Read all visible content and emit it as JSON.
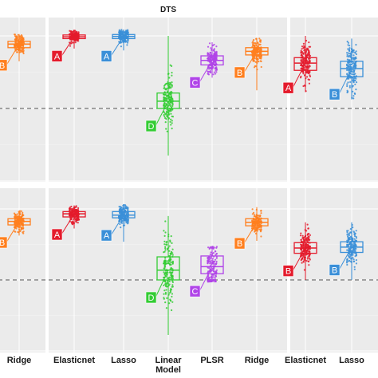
{
  "chart_data": {
    "type": "box",
    "title": "DTS",
    "colors": {
      "Ridge": "#ff7f1e",
      "Elasticnet": "#e41a2b",
      "Lasso": "#3a8fd8",
      "Linear Model": "#33cc33",
      "PLSR": "#b044e8",
      "panel_bg": "#ebebeb",
      "grid": "#ffffff",
      "reference_line": "#555555"
    },
    "rows": [
      {
        "groups": [
          {
            "columns": [
              {
                "x_label": "Ridge",
                "model": "Ridge",
                "letter": "B",
                "box": {
                  "min": 0.52,
                  "q1": 0.67,
                  "median": 0.71,
                  "q3": 0.74,
                  "max": 0.82
                }
              }
            ]
          },
          {
            "columns": [
              {
                "x_label": "Elasticnet",
                "model": "Elasticnet",
                "letter": "A",
                "box": {
                  "min": 0.66,
                  "q1": 0.77,
                  "median": 0.79,
                  "q3": 0.81,
                  "max": 0.86
                }
              },
              {
                "x_label": "Lasso",
                "model": "Lasso",
                "letter": "A",
                "box": {
                  "min": 0.64,
                  "q1": 0.77,
                  "median": 0.795,
                  "q3": 0.815,
                  "max": 0.87
                }
              },
              {
                "x_label": "Linear\nModel",
                "model": "Linear Model",
                "letter": "D",
                "box": {
                  "min": -0.52,
                  "q1": 0.0,
                  "median": 0.08,
                  "q3": 0.17,
                  "max": 0.8
                }
              },
              {
                "x_label": "PLSR",
                "model": "PLSR",
                "letter": "C",
                "box": {
                  "min": 0.34,
                  "q1": 0.48,
                  "median": 0.53,
                  "q3": 0.58,
                  "max": 0.73
                }
              },
              {
                "x_label": "Ridge",
                "model": "Ridge",
                "letter": "B",
                "box": {
                  "min": 0.2,
                  "q1": 0.59,
                  "median": 0.63,
                  "q3": 0.67,
                  "max": 0.77
                }
              }
            ]
          },
          {
            "columns": [
              {
                "x_label": "Elasticnet",
                "model": "Elasticnet",
                "letter": "A",
                "box": {
                  "min": 0.18,
                  "q1": 0.42,
                  "median": 0.5,
                  "q3": 0.56,
                  "max": 0.8
                }
              },
              {
                "x_label": "Lasso",
                "model": "Lasso",
                "letter": "B",
                "box": {
                  "min": 0.1,
                  "q1": 0.35,
                  "median": 0.44,
                  "q3": 0.52,
                  "max": 0.77
                }
              }
            ]
          }
        ]
      },
      {
        "groups": [
          {
            "columns": [
              {
                "x_label": "Ridge",
                "model": "Ridge",
                "letter": "B",
                "box": {
                  "min": 0.5,
                  "q1": 0.62,
                  "median": 0.66,
                  "q3": 0.69,
                  "max": 0.78
                }
              }
            ]
          },
          {
            "columns": [
              {
                "x_label": "Elasticnet",
                "model": "Elasticnet",
                "letter": "A",
                "box": {
                  "min": 0.58,
                  "q1": 0.71,
                  "median": 0.745,
                  "q3": 0.77,
                  "max": 0.84
                }
              },
              {
                "x_label": "Lasso",
                "model": "Lasso",
                "letter": "A",
                "box": {
                  "min": 0.43,
                  "q1": 0.7,
                  "median": 0.73,
                  "q3": 0.77,
                  "max": 0.85
                }
              },
              {
                "x_label": "Linear\nModel",
                "model": "Linear Model",
                "letter": "D",
                "box": {
                  "min": -0.62,
                  "q1": 0.0,
                  "median": 0.11,
                  "q3": 0.26,
                  "max": 0.72
                }
              },
              {
                "x_label": "PLSR",
                "model": "PLSR",
                "letter": "C",
                "box": {
                  "min": -0.02,
                  "q1": 0.07,
                  "median": 0.15,
                  "q3": 0.27,
                  "max": 0.38
                }
              },
              {
                "x_label": "Ridge",
                "model": "Ridge",
                "letter": "B",
                "box": {
                  "min": 0.44,
                  "q1": 0.61,
                  "median": 0.65,
                  "q3": 0.69,
                  "max": 0.82
                }
              }
            ]
          },
          {
            "columns": [
              {
                "x_label": "Elasticnet",
                "model": "Elasticnet",
                "letter": "B",
                "box": {
                  "min": 0.0,
                  "q1": 0.3,
                  "median": 0.36,
                  "q3": 0.42,
                  "max": 0.65
                }
              },
              {
                "x_label": "Lasso",
                "model": "Lasso",
                "letter": "B",
                "box": {
                  "min": 0.0,
                  "q1": 0.31,
                  "median": 0.37,
                  "q3": 0.43,
                  "max": 0.65
                }
              }
            ]
          }
        ]
      }
    ],
    "reference_line_y": 0,
    "x_tick_labels": [
      "Ridge",
      "Elasticnet",
      "Lasso",
      "Linear\nModel",
      "PLSR",
      "Ridge",
      "Elasticnet",
      "Lasso"
    ],
    "grid": true,
    "legend": "none"
  }
}
